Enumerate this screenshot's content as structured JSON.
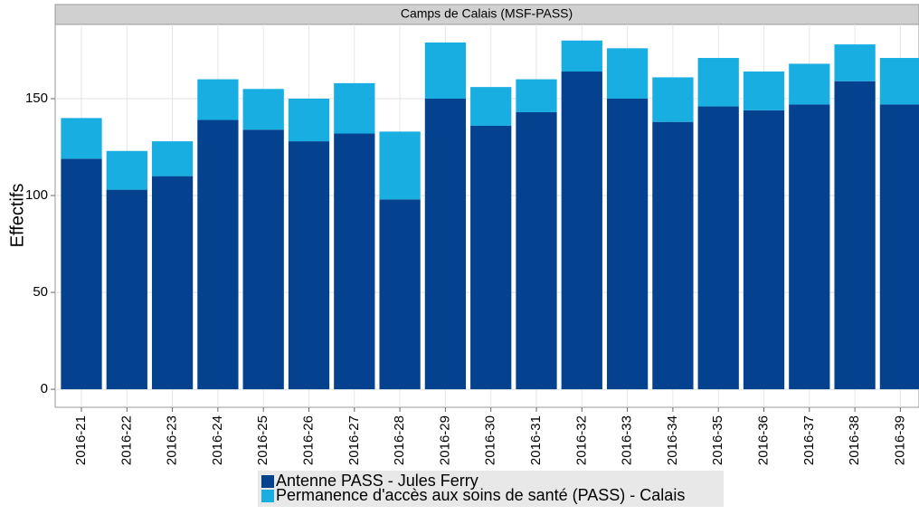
{
  "chart_data": {
    "type": "stacked_bar",
    "title": "Camps de Calais (MSF-PASS)",
    "y_label": "Effectifs",
    "categories": [
      "2016-21",
      "2016-22",
      "2016-23",
      "2016-24",
      "2016-25",
      "2016-26",
      "2016-27",
      "2016-28",
      "2016-29",
      "2016-30",
      "2016-31",
      "2016-32",
      "2016-33",
      "2016-34",
      "2016-35",
      "2016-36",
      "2016-37",
      "2016-38",
      "2016-39"
    ],
    "series": [
      {
        "name": "Antenne PASS - Jules Ferry",
        "color": "#04428f",
        "values": [
          119,
          103,
          110,
          139,
          134,
          128,
          132,
          98,
          150,
          136,
          143,
          164,
          150,
          138,
          146,
          144,
          147,
          159,
          147
        ]
      },
      {
        "name": "Permanence d'accès aux soins de santé (PASS) - Calais",
        "color": "#18aee2",
        "values": [
          21,
          20,
          18,
          21,
          21,
          22,
          26,
          35,
          29,
          20,
          17,
          16,
          26,
          23,
          25,
          20,
          21,
          19,
          24
        ]
      }
    ],
    "ylim": [
      -9.3,
      188.3
    ],
    "yticks": [
      0,
      50,
      100,
      150
    ],
    "grid": true,
    "legend": "bottom"
  }
}
